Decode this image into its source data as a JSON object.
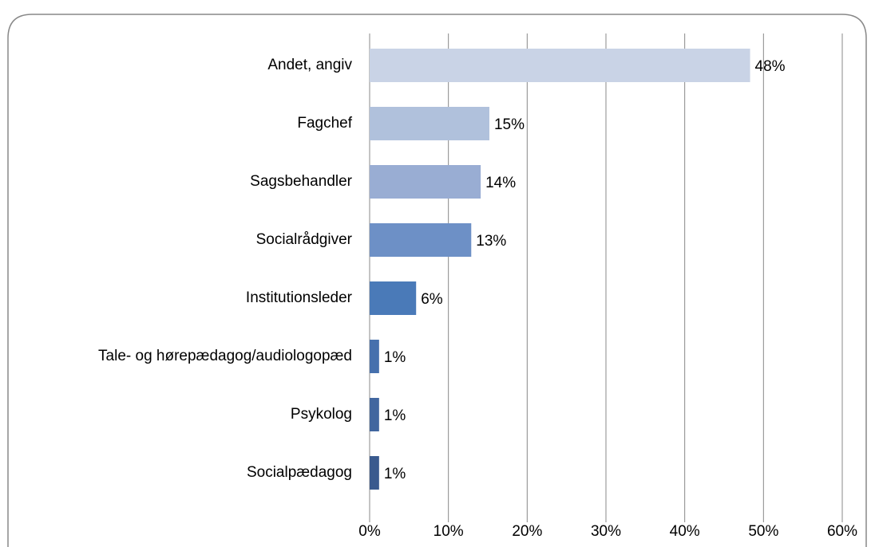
{
  "chart_data": {
    "type": "barh",
    "categories": [
      "Andet, angiv",
      "Fagchef",
      "Sagsbehandler ",
      "Socialrådgiver",
      "Institutionsleder",
      "Tale- og hørepædagog/audiologopæd",
      "Psykolog",
      "Socialpædagog"
    ],
    "values": [
      48.3,
      15.2,
      14.1,
      12.9,
      5.9,
      1.2,
      1.2,
      1.2
    ],
    "value_labels": [
      "48%",
      "15%",
      "14%",
      "13%",
      "6%",
      "1%",
      "1%",
      "1%"
    ],
    "colors": [
      "#c9d3e6",
      "#b0c1dc",
      "#99add3",
      "#6d90c6",
      "#4a7ab8",
      "#4670ad",
      "#41669f",
      "#3a5a8e"
    ],
    "xlim": [
      0,
      60
    ],
    "xticks": [
      {
        "value": 0,
        "label": "0%"
      },
      {
        "value": 10,
        "label": "10%"
      },
      {
        "value": 20,
        "label": "20%"
      },
      {
        "value": 30,
        "label": "30%"
      },
      {
        "value": 40,
        "label": "40%"
      },
      {
        "value": 50,
        "label": "50%"
      },
      {
        "value": 60,
        "label": "60%"
      }
    ],
    "grid": true
  }
}
